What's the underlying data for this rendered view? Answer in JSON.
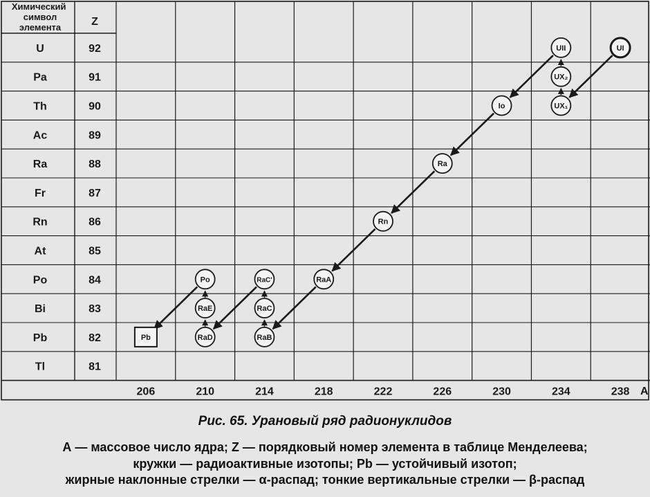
{
  "table": {
    "col_symbol_header": "Химический символ элемента",
    "col_z_header": "Z",
    "axis_unit_label": "A",
    "rows": [
      {
        "symbol": "U",
        "z": "92"
      },
      {
        "symbol": "Pa",
        "z": "91"
      },
      {
        "symbol": "Th",
        "z": "90"
      },
      {
        "symbol": "Ac",
        "z": "89"
      },
      {
        "symbol": "Ra",
        "z": "88"
      },
      {
        "symbol": "Fr",
        "z": "87"
      },
      {
        "symbol": "Rn",
        "z": "86"
      },
      {
        "symbol": "At",
        "z": "85"
      },
      {
        "symbol": "Po",
        "z": "84"
      },
      {
        "symbol": "Bi",
        "z": "83"
      },
      {
        "symbol": "Pb",
        "z": "82"
      },
      {
        "symbol": "Tl",
        "z": "81"
      }
    ],
    "mass_ticks": [
      "206",
      "210",
      "214",
      "218",
      "222",
      "226",
      "230",
      "234",
      "238"
    ]
  },
  "nuclides": [
    {
      "id": "UI",
      "label": "UI",
      "a": 238,
      "z": 92,
      "stable": false
    },
    {
      "id": "UX1",
      "label": "UX₁",
      "a": 234,
      "z": 90,
      "stable": false
    },
    {
      "id": "UX2",
      "label": "UX₂",
      "a": 234,
      "z": 91,
      "stable": false
    },
    {
      "id": "UII",
      "label": "UII",
      "a": 234,
      "z": 92,
      "stable": false
    },
    {
      "id": "Io",
      "label": "Io",
      "a": 230,
      "z": 90,
      "stable": false
    },
    {
      "id": "Ra",
      "label": "Ra",
      "a": 226,
      "z": 88,
      "stable": false
    },
    {
      "id": "Rn",
      "label": "Rn",
      "a": 222,
      "z": 86,
      "stable": false
    },
    {
      "id": "RaA",
      "label": "RaA",
      "a": 218,
      "z": 84,
      "stable": false
    },
    {
      "id": "RaB",
      "label": "RaB",
      "a": 214,
      "z": 82,
      "stable": false
    },
    {
      "id": "RaC",
      "label": "RaC",
      "a": 214,
      "z": 83,
      "stable": false
    },
    {
      "id": "RaC'",
      "label": "RaC'",
      "a": 214,
      "z": 84,
      "stable": false
    },
    {
      "id": "RaD",
      "label": "RaD",
      "a": 210,
      "z": 82,
      "stable": false
    },
    {
      "id": "RaE",
      "label": "RaE",
      "a": 210,
      "z": 83,
      "stable": false
    },
    {
      "id": "Po",
      "label": "Po",
      "a": 210,
      "z": 84,
      "stable": false
    },
    {
      "id": "Pb",
      "label": "Pb",
      "a": 206,
      "z": 82,
      "stable": true
    }
  ],
  "decays": [
    {
      "from": "UI",
      "to": "UX1",
      "type": "alpha"
    },
    {
      "from": "UX1",
      "to": "UX2",
      "type": "beta"
    },
    {
      "from": "UX2",
      "to": "UII",
      "type": "beta"
    },
    {
      "from": "UII",
      "to": "Io",
      "type": "alpha"
    },
    {
      "from": "Io",
      "to": "Ra",
      "type": "alpha"
    },
    {
      "from": "Ra",
      "to": "Rn",
      "type": "alpha"
    },
    {
      "from": "Rn",
      "to": "RaA",
      "type": "alpha"
    },
    {
      "from": "RaA",
      "to": "RaB",
      "type": "alpha"
    },
    {
      "from": "RaB",
      "to": "RaC",
      "type": "beta"
    },
    {
      "from": "RaC",
      "to": "RaC'",
      "type": "beta"
    },
    {
      "from": "RaC'",
      "to": "RaD",
      "type": "alpha"
    },
    {
      "from": "RaD",
      "to": "RaE",
      "type": "beta"
    },
    {
      "from": "RaE",
      "to": "Po",
      "type": "beta"
    },
    {
      "from": "Po",
      "to": "Pb",
      "type": "alpha"
    }
  ],
  "caption": {
    "title": "Рис. 65. Урановый ряд радионуклидов",
    "line1": "А — массовое число ядра; Z — порядковый номер элемента в таблице Менделеева;",
    "line2": "кружки — радиоактивные изотопы; Pb — устойчивый изотоп;",
    "line3": "жирные наклонные стрелки — α-распад; тонкие вертикальные стрелки — β-распад"
  },
  "colors": {
    "ink": "#1a1a1a",
    "paper": "#e6e6e6",
    "node_fill": "#f4f4f4"
  }
}
